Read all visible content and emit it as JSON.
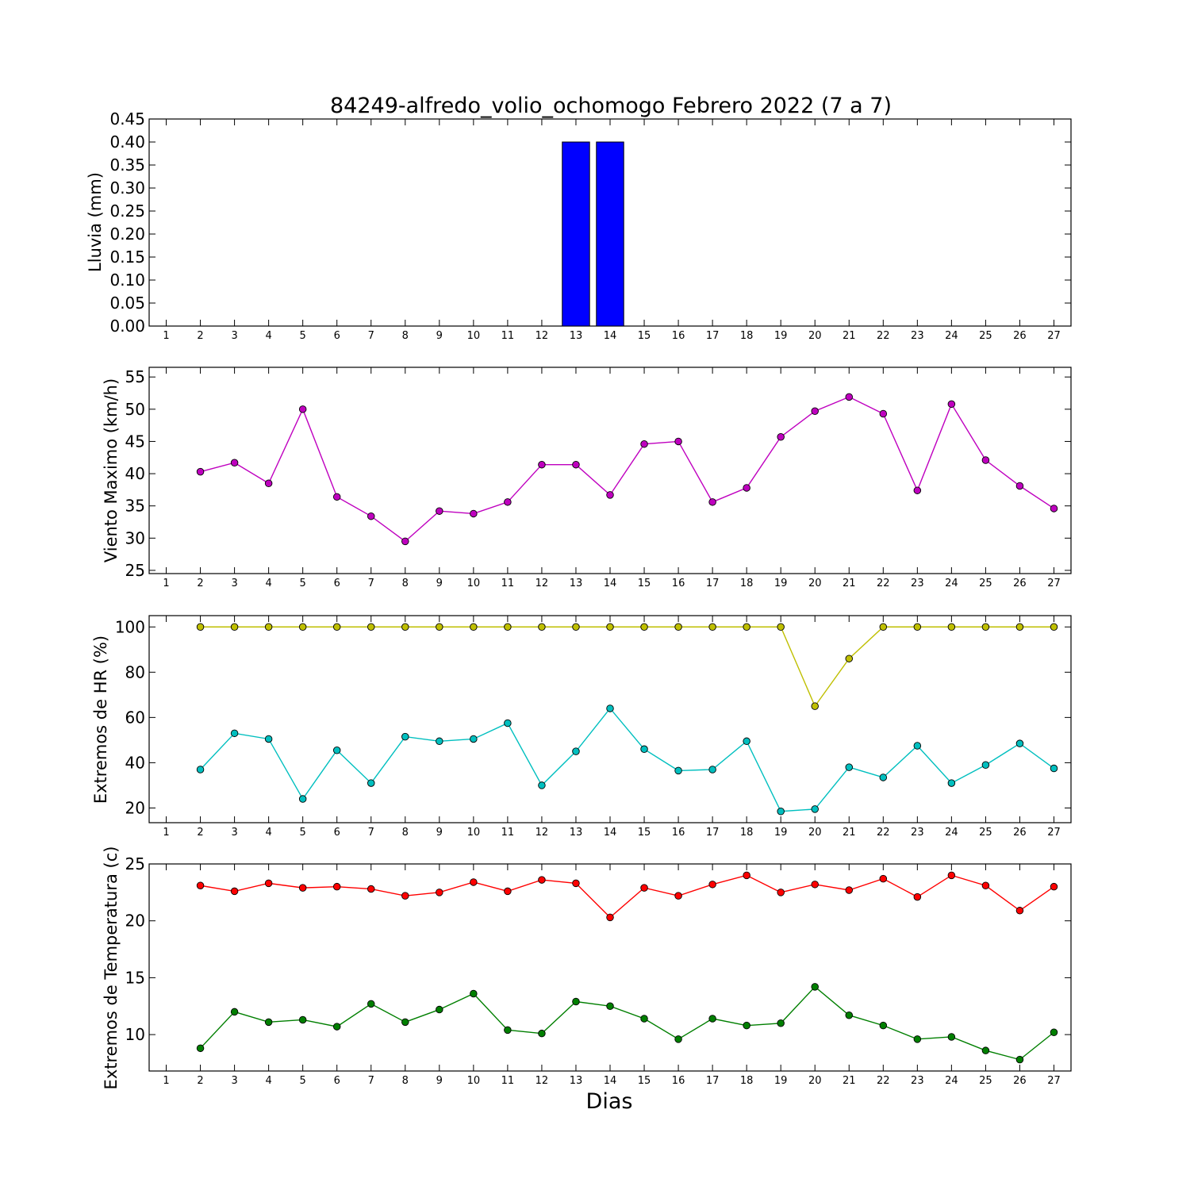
{
  "figure": {
    "title": "84249-alfredo_volio_ochomogo Febrero 2022  (7 a 7)",
    "xlabel": "Dias"
  },
  "chart_data": [
    {
      "type": "bar",
      "ylabel": "Lluvia (mm)",
      "xlim": [
        0.5,
        27.5
      ],
      "ylim": [
        0,
        0.45
      ],
      "yticks": [
        "0.00",
        "0.05",
        "0.10",
        "0.15",
        "0.20",
        "0.25",
        "0.30",
        "0.35",
        "0.40",
        "0.45"
      ],
      "xticks": [
        1,
        2,
        3,
        4,
        5,
        6,
        7,
        8,
        9,
        10,
        11,
        12,
        13,
        14,
        15,
        16,
        17,
        18,
        19,
        20,
        21,
        22,
        23,
        24,
        25,
        26,
        27
      ],
      "series": [
        {
          "color": "#0000ff",
          "x": [
            2,
            3,
            4,
            5,
            6,
            7,
            8,
            9,
            10,
            11,
            12,
            13,
            14,
            15,
            16,
            17,
            18,
            19,
            20,
            21,
            22,
            23,
            24,
            25,
            26,
            27
          ],
          "values": [
            0,
            0,
            0,
            0,
            0,
            0,
            0,
            0,
            0,
            0,
            0,
            0.4,
            0.4,
            0,
            0,
            0,
            0,
            0,
            0,
            0,
            0,
            0,
            0,
            0,
            0,
            0
          ]
        }
      ]
    },
    {
      "type": "line",
      "ylabel": "Viento Maximo (km/h)",
      "xlim": [
        0.5,
        27.5
      ],
      "ylim": [
        24.5,
        56.5
      ],
      "yticks": [
        "25",
        "30",
        "35",
        "40",
        "45",
        "50",
        "55"
      ],
      "xticks": [
        1,
        2,
        3,
        4,
        5,
        6,
        7,
        8,
        9,
        10,
        11,
        12,
        13,
        14,
        15,
        16,
        17,
        18,
        19,
        20,
        21,
        22,
        23,
        24,
        25,
        26,
        27
      ],
      "series": [
        {
          "color": "#bf00bf",
          "x": [
            2,
            3,
            4,
            5,
            6,
            7,
            8,
            9,
            10,
            11,
            12,
            13,
            14,
            15,
            16,
            17,
            18,
            19,
            20,
            21,
            22,
            23,
            24,
            25,
            26,
            27
          ],
          "values": [
            40.3,
            41.7,
            38.5,
            50.0,
            36.4,
            33.4,
            29.5,
            34.2,
            33.8,
            35.6,
            41.4,
            41.4,
            36.7,
            44.6,
            45.0,
            35.6,
            37.8,
            45.7,
            49.7,
            51.9,
            49.3,
            37.4,
            50.8,
            42.1,
            38.1,
            34.6
          ]
        }
      ]
    },
    {
      "type": "line",
      "ylabel": "Extremos de HR (%)",
      "xlim": [
        0.5,
        27.5
      ],
      "ylim": [
        13.5,
        105
      ],
      "yticks": [
        "20",
        "40",
        "60",
        "80",
        "100"
      ],
      "xticks": [
        1,
        2,
        3,
        4,
        5,
        6,
        7,
        8,
        9,
        10,
        11,
        12,
        13,
        14,
        15,
        16,
        17,
        18,
        19,
        20,
        21,
        22,
        23,
        24,
        25,
        26,
        27
      ],
      "series": [
        {
          "color": "#bfbf00",
          "x": [
            2,
            3,
            4,
            5,
            6,
            7,
            8,
            9,
            10,
            11,
            12,
            13,
            14,
            15,
            16,
            17,
            18,
            19,
            20,
            21,
            22,
            23,
            24,
            25,
            26,
            27
          ],
          "values": [
            100,
            100,
            100,
            100,
            100,
            100,
            100,
            100,
            100,
            100,
            100,
            100,
            100,
            100,
            100,
            100,
            100,
            100,
            65,
            86,
            100,
            100,
            100,
            100,
            100,
            100
          ]
        },
        {
          "color": "#00bfbf",
          "x": [
            2,
            3,
            4,
            5,
            6,
            7,
            8,
            9,
            10,
            11,
            12,
            13,
            14,
            15,
            16,
            17,
            18,
            19,
            20,
            21,
            22,
            23,
            24,
            25,
            26,
            27
          ],
          "values": [
            37,
            53,
            50.5,
            24,
            45.5,
            31,
            51.5,
            49.5,
            50.5,
            57.5,
            30,
            45,
            64,
            46,
            36.5,
            37,
            49.5,
            18.5,
            19.5,
            38,
            33.5,
            47.5,
            31,
            39,
            48.5,
            37.5
          ]
        }
      ]
    },
    {
      "type": "line",
      "ylabel": "Extremos de Temperatura (c)",
      "xlim": [
        0.5,
        27.5
      ],
      "ylim": [
        6.8,
        25
      ],
      "yticks": [
        "10",
        "15",
        "20",
        "25"
      ],
      "xticks": [
        1,
        2,
        3,
        4,
        5,
        6,
        7,
        8,
        9,
        10,
        11,
        12,
        13,
        14,
        15,
        16,
        17,
        18,
        19,
        20,
        21,
        22,
        23,
        24,
        25,
        26,
        27
      ],
      "series": [
        {
          "color": "#ff0000",
          "x": [
            2,
            3,
            4,
            5,
            6,
            7,
            8,
            9,
            10,
            11,
            12,
            13,
            14,
            15,
            16,
            17,
            18,
            19,
            20,
            21,
            22,
            23,
            24,
            25,
            26,
            27
          ],
          "values": [
            23.1,
            22.6,
            23.3,
            22.9,
            23.0,
            22.8,
            22.2,
            22.5,
            23.4,
            22.6,
            23.6,
            23.3,
            20.3,
            22.9,
            22.2,
            23.2,
            24.0,
            22.5,
            23.2,
            22.7,
            23.7,
            22.1,
            24.0,
            23.1,
            20.9,
            23.0
          ]
        },
        {
          "color": "#007f00",
          "x": [
            2,
            3,
            4,
            5,
            6,
            7,
            8,
            9,
            10,
            11,
            12,
            13,
            14,
            15,
            16,
            17,
            18,
            19,
            20,
            21,
            22,
            23,
            24,
            25,
            26,
            27
          ],
          "values": [
            8.8,
            12.0,
            11.1,
            11.3,
            10.7,
            12.7,
            11.1,
            12.2,
            13.6,
            10.4,
            10.1,
            12.9,
            12.5,
            11.4,
            9.6,
            11.4,
            10.8,
            11.0,
            14.2,
            11.7,
            10.8,
            9.6,
            9.8,
            8.6,
            7.8,
            10.2
          ]
        }
      ]
    }
  ]
}
